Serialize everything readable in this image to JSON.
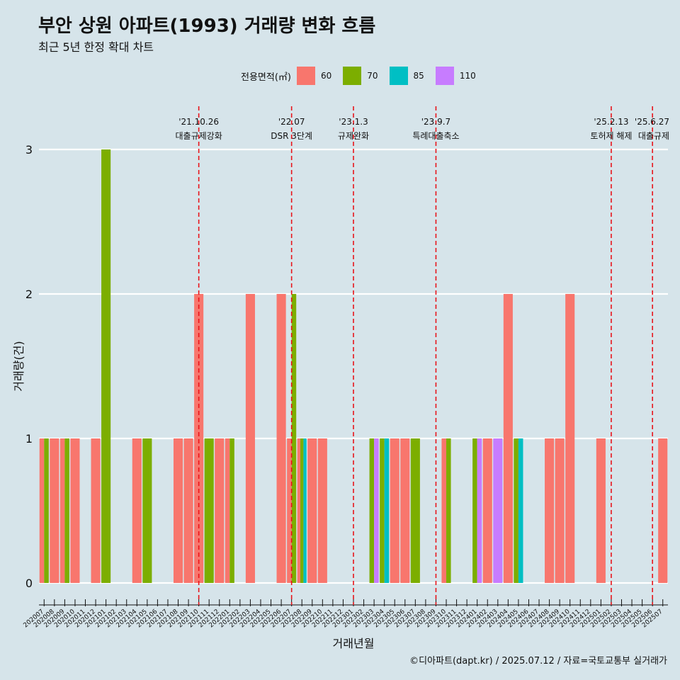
{
  "header": {
    "title": "부안 상원 아파트(1993) 거래량 변화 흐름",
    "subtitle": "최근 5년 한정 확대 차트"
  },
  "caption": "©디아파트(dapt.kr) / 2025.07.12 / 자료=국토교통부 실거래가",
  "legend": {
    "title": "전용면적(㎡)",
    "items": [
      {
        "label": "60",
        "color": "#f8766d"
      },
      {
        "label": "70",
        "color": "#7cae00"
      },
      {
        "label": "85",
        "color": "#00bfc4"
      },
      {
        "label": "110",
        "color": "#c77cff"
      }
    ]
  },
  "chart_data": {
    "type": "bar",
    "title": "부안 상원 아파트(1993) 거래량 변화 흐름",
    "xlabel": "거래년월",
    "ylabel": "거래량(건)",
    "ylim": [
      0,
      3
    ],
    "yticks": [
      0,
      1,
      2,
      3
    ],
    "grid": true,
    "legend_position": "top",
    "categories": [
      "202007",
      "202008",
      "202009",
      "202010",
      "202011",
      "202012",
      "202101",
      "202102",
      "202103",
      "202104",
      "202105",
      "202106",
      "202107",
      "202108",
      "202109",
      "202110",
      "202111",
      "202112",
      "202201",
      "202202",
      "202203",
      "202204",
      "202205",
      "202206",
      "202207",
      "202208",
      "202209",
      "202210",
      "202211",
      "202212",
      "202301",
      "202302",
      "202303",
      "202304",
      "202305",
      "202306",
      "202307",
      "202308",
      "202309",
      "202310",
      "202311",
      "202312",
      "202401",
      "202402",
      "202403",
      "202404",
      "202405",
      "202406",
      "202407",
      "202408",
      "202409",
      "202410",
      "202411",
      "202412",
      "202501",
      "202502",
      "202503",
      "202504",
      "202505",
      "202506",
      "202507"
    ],
    "series": [
      {
        "name": "60",
        "color": "#f8766d",
        "values": [
          1,
          1,
          1,
          1,
          0,
          1,
          0,
          0,
          0,
          1,
          0,
          0,
          0,
          1,
          1,
          2,
          0,
          1,
          1,
          0,
          2,
          0,
          0,
          2,
          1,
          1,
          1,
          1,
          0,
          0,
          0,
          0,
          0,
          0,
          1,
          1,
          0,
          0,
          0,
          1,
          0,
          0,
          0,
          1,
          0,
          2,
          0,
          0,
          0,
          1,
          1,
          2,
          0,
          0,
          1,
          0,
          0,
          0,
          0,
          0,
          1
        ]
      },
      {
        "name": "70",
        "color": "#7cae00",
        "values": [
          1,
          0,
          1,
          0,
          0,
          0,
          3,
          0,
          0,
          0,
          1,
          0,
          0,
          0,
          0,
          0,
          1,
          0,
          1,
          0,
          0,
          0,
          0,
          0,
          2,
          1,
          0,
          0,
          0,
          0,
          0,
          0,
          1,
          1,
          0,
          0,
          1,
          0,
          0,
          1,
          0,
          0,
          1,
          0,
          0,
          0,
          1,
          0,
          0,
          0,
          0,
          0,
          0,
          0,
          0,
          0,
          0,
          0,
          0,
          0,
          0
        ]
      },
      {
        "name": "85",
        "color": "#00bfc4",
        "values": [
          0,
          0,
          0,
          0,
          0,
          0,
          0,
          0,
          0,
          0,
          0,
          0,
          0,
          0,
          0,
          0,
          0,
          0,
          0,
          0,
          0,
          0,
          0,
          0,
          0,
          1,
          0,
          0,
          0,
          0,
          0,
          0,
          0,
          1,
          0,
          0,
          0,
          0,
          0,
          0,
          0,
          0,
          0,
          0,
          0,
          0,
          1,
          0,
          0,
          0,
          0,
          0,
          0,
          0,
          0,
          0,
          0,
          0,
          0,
          0,
          0
        ]
      },
      {
        "name": "110",
        "color": "#c77cff",
        "values": [
          0,
          0,
          0,
          0,
          0,
          0,
          0,
          0,
          0,
          0,
          0,
          0,
          0,
          0,
          0,
          0,
          0,
          0,
          0,
          0,
          0,
          0,
          0,
          0,
          0,
          0,
          0,
          0,
          0,
          0,
          0,
          0,
          1,
          0,
          0,
          0,
          0,
          0,
          0,
          0,
          0,
          0,
          1,
          0,
          1,
          0,
          0,
          0,
          0,
          0,
          0,
          0,
          0,
          0,
          0,
          0,
          0,
          0,
          0,
          0,
          0
        ]
      }
    ],
    "annotations": [
      {
        "date": "'21.10.26",
        "text": "대출규제강화",
        "x": "202110"
      },
      {
        "date": "'22.07",
        "text": "DSR 3단계",
        "x": "202207"
      },
      {
        "date": "'23.1.3",
        "text": "규제완화",
        "x": "202301"
      },
      {
        "date": "'23.9.7",
        "text": "특례대출축소",
        "x": "202309"
      },
      {
        "date": "'25.2.13",
        "text": "토허제 해제",
        "x": "202502"
      },
      {
        "date": "'25.6.27",
        "text": "대출규제",
        "x": "202506"
      }
    ]
  }
}
